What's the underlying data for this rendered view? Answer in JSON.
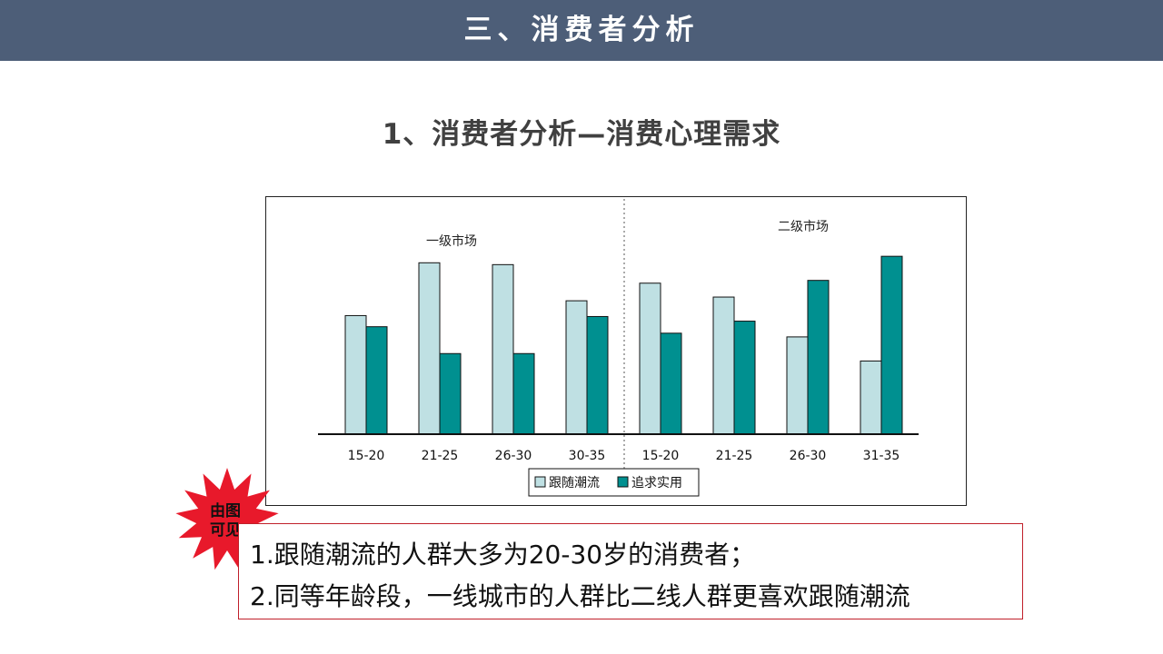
{
  "header": {
    "title": "三、消费者分析"
  },
  "subtitle": "1、消费者分析—消费心理需求",
  "chart_data": {
    "type": "bar",
    "groups": [
      {
        "label": "一级市场",
        "categories": [
          "15-20",
          "21-25",
          "26-30",
          "30-35"
        ]
      },
      {
        "label": "二级市场",
        "categories": [
          "15-20",
          "21-25",
          "26-30",
          "31-35"
        ]
      }
    ],
    "categories": [
      "15-20",
      "21-25",
      "26-30",
      "30-35",
      "15-20",
      "21-25",
      "26-30",
      "31-35"
    ],
    "series": [
      {
        "name": "跟随潮流",
        "color": "#bfe0e3",
        "values": [
          128,
          185,
          183,
          144,
          163,
          148,
          105,
          79
        ]
      },
      {
        "name": "追求实用",
        "color": "#009090",
        "values": [
          116,
          87,
          87,
          127,
          109,
          122,
          166,
          192
        ]
      }
    ],
    "ylim": [
      0,
      200
    ],
    "grid": false,
    "legend_position": "bottom",
    "divider": "dotted vertical line between market groups"
  },
  "badge": {
    "line1": "由图",
    "line2": "可见",
    "color": "#e8192b"
  },
  "conclusions": [
    "1.跟随潮流的人群大多为20-30岁的消费者；",
    "2.同等年龄段，一线城市的人群比二线人群更喜欢跟随潮流"
  ]
}
